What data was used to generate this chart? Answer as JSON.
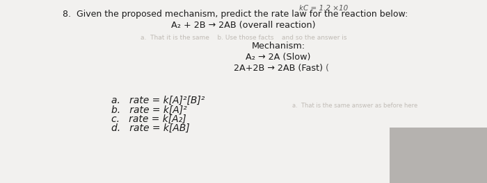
{
  "bg_color": "#ededeb",
  "paper_color": "#f2f1ef",
  "top_text": "kC = 1.2 ×10",
  "question_text": "8.  Given the proposed mechanism, predict the rate law for the reaction below:",
  "overall_reaction": "A₂ + 2B → 2AB (overall reaction)",
  "mechanism_label": "Mechanism:",
  "mech_line1": "A₂ → 2A (Slow)",
  "mech_line2": "2A+2B → 2AB (Fast)",
  "mech_paren": "(",
  "faded_text": "a.  That it is the same    b. Use those facts    and so the answer is",
  "answer_a": "a.   rate = k[A]²[B]²",
  "answer_b": "b.   rate = k[A]²",
  "answer_c": "c.   rate = k[A₂]",
  "answer_d": "d.   rate = k[AB]",
  "text_color": "#1c1c1c",
  "faded_color": "#c0bbb5",
  "top_color": "#555555",
  "font_size_q": 9.0,
  "font_size_rxn": 9.2,
  "font_size_mech": 9.2,
  "font_size_ans": 10.0
}
